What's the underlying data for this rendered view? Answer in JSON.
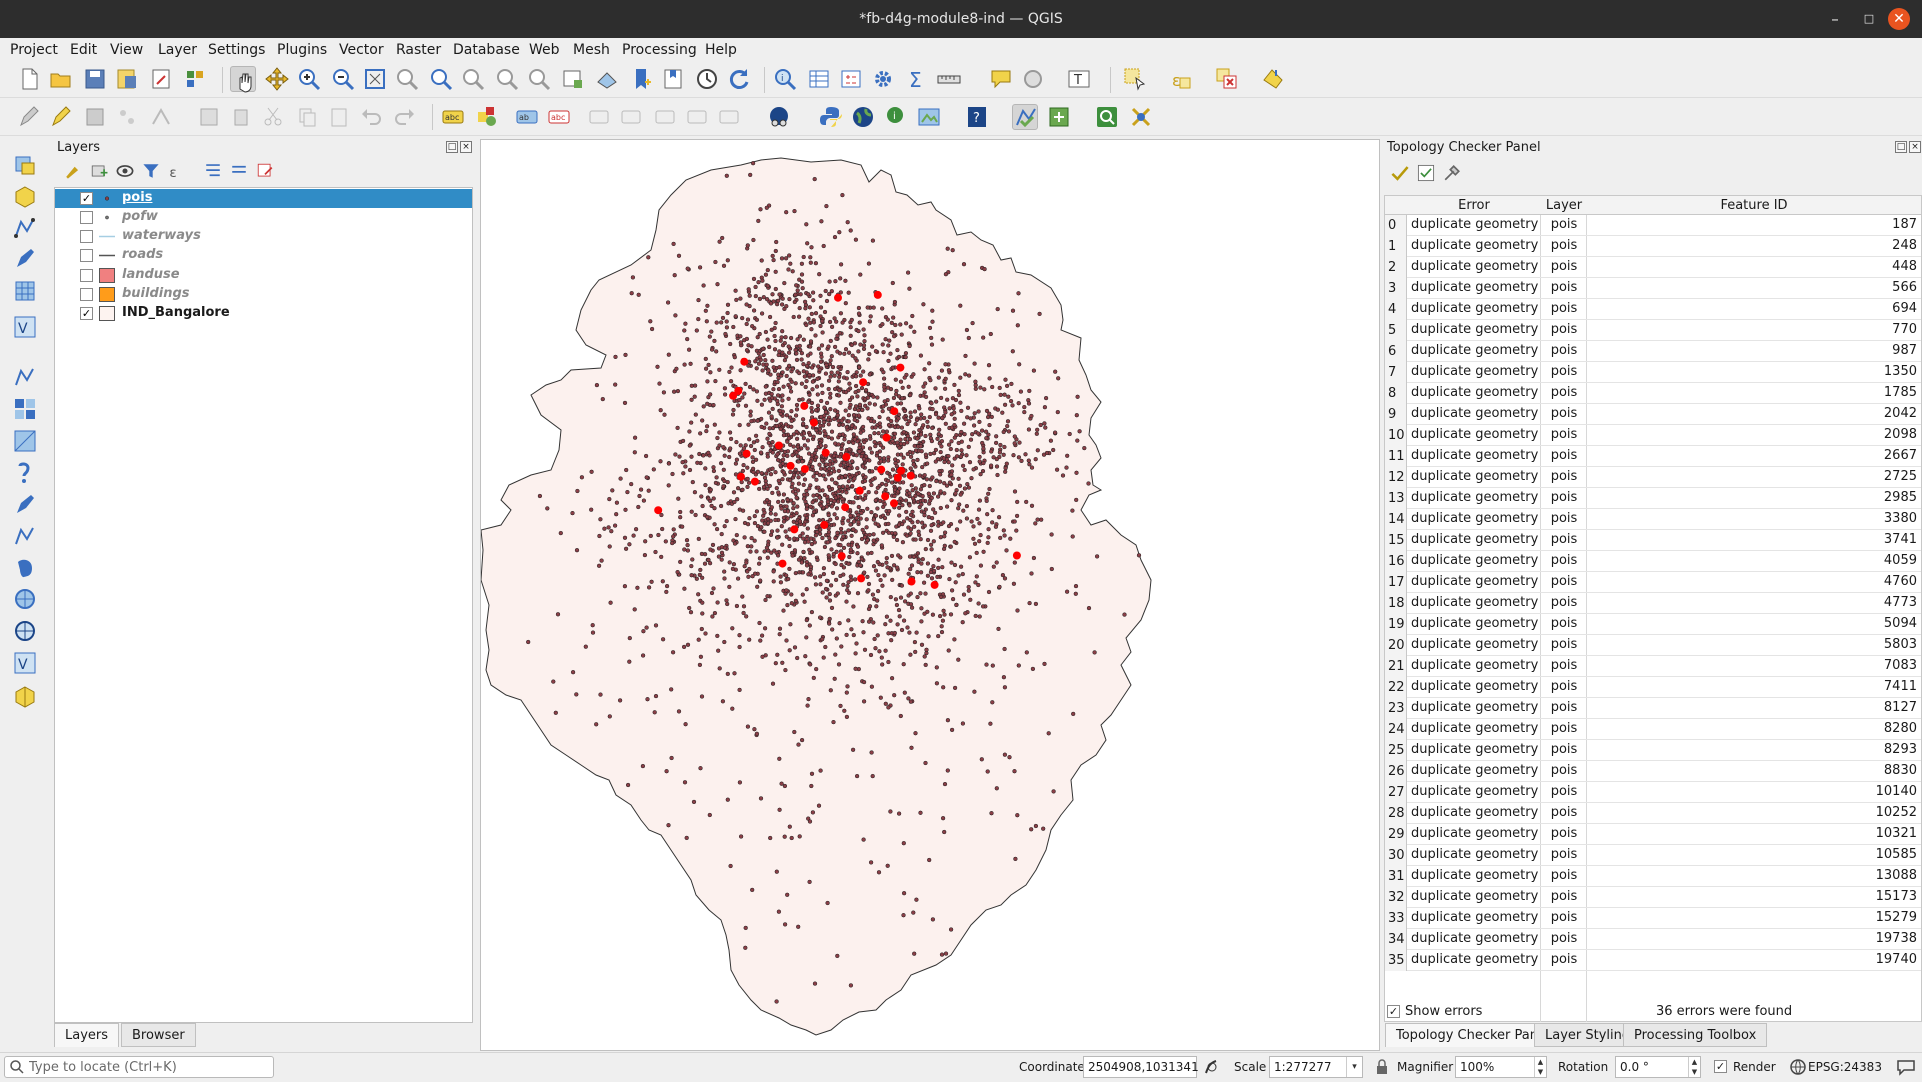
{
  "window": {
    "title": "*fb-d4g-module8-ind — QGIS"
  },
  "menu": [
    "Project",
    "Edit",
    "View",
    "Layer",
    "Settings",
    "Plugins",
    "Vector",
    "Raster",
    "Database",
    "Web",
    "Mesh",
    "Processing",
    "Help"
  ],
  "layers_panel": {
    "title": "Layers",
    "layers": [
      {
        "name": "pois",
        "checked": true,
        "selected": true,
        "symbol": "point-icon"
      },
      {
        "name": "pofw",
        "checked": false,
        "selected": false,
        "symbol": "point-icon"
      },
      {
        "name": "waterways",
        "checked": false,
        "selected": false,
        "symbol": "line-icon",
        "color": "#a6cee3"
      },
      {
        "name": "roads",
        "checked": false,
        "selected": false,
        "symbol": "line-icon",
        "color": "#555555"
      },
      {
        "name": "landuse",
        "checked": false,
        "selected": false,
        "symbol": "polygon-icon",
        "color": "#f08080"
      },
      {
        "name": "buildings",
        "checked": false,
        "selected": false,
        "symbol": "polygon-icon",
        "color": "#ff9c1a"
      },
      {
        "name": "IND_Bangalore",
        "checked": true,
        "selected": false,
        "symbol": "polygon-icon",
        "color": "#fdf3f0"
      }
    ],
    "tabs": [
      "Layers",
      "Browser"
    ],
    "active_tab": "Layers"
  },
  "map": {
    "polygon_fill": "#fcf1ee",
    "point_color": "#8a3f47",
    "error_color": "#ff0000"
  },
  "topology": {
    "title": "Topology Checker Panel",
    "columns": [
      "Error",
      "Layer",
      "Feature ID"
    ],
    "rows": [
      {
        "idx": "0",
        "error": "duplicate geometry",
        "layer": "pois",
        "fid": "187"
      },
      {
        "idx": "1",
        "error": "duplicate geometry",
        "layer": "pois",
        "fid": "248"
      },
      {
        "idx": "2",
        "error": "duplicate geometry",
        "layer": "pois",
        "fid": "448"
      },
      {
        "idx": "3",
        "error": "duplicate geometry",
        "layer": "pois",
        "fid": "566"
      },
      {
        "idx": "4",
        "error": "duplicate geometry",
        "layer": "pois",
        "fid": "694"
      },
      {
        "idx": "5",
        "error": "duplicate geometry",
        "layer": "pois",
        "fid": "770"
      },
      {
        "idx": "6",
        "error": "duplicate geometry",
        "layer": "pois",
        "fid": "987"
      },
      {
        "idx": "7",
        "error": "duplicate geometry",
        "layer": "pois",
        "fid": "1350"
      },
      {
        "idx": "8",
        "error": "duplicate geometry",
        "layer": "pois",
        "fid": "1785"
      },
      {
        "idx": "9",
        "error": "duplicate geometry",
        "layer": "pois",
        "fid": "2042"
      },
      {
        "idx": "10",
        "error": "duplicate geometry",
        "layer": "pois",
        "fid": "2098"
      },
      {
        "idx": "11",
        "error": "duplicate geometry",
        "layer": "pois",
        "fid": "2667"
      },
      {
        "idx": "12",
        "error": "duplicate geometry",
        "layer": "pois",
        "fid": "2725"
      },
      {
        "idx": "13",
        "error": "duplicate geometry",
        "layer": "pois",
        "fid": "2985"
      },
      {
        "idx": "14",
        "error": "duplicate geometry",
        "layer": "pois",
        "fid": "3380"
      },
      {
        "idx": "15",
        "error": "duplicate geometry",
        "layer": "pois",
        "fid": "3741"
      },
      {
        "idx": "16",
        "error": "duplicate geometry",
        "layer": "pois",
        "fid": "4059"
      },
      {
        "idx": "17",
        "error": "duplicate geometry",
        "layer": "pois",
        "fid": "4760"
      },
      {
        "idx": "18",
        "error": "duplicate geometry",
        "layer": "pois",
        "fid": "4773"
      },
      {
        "idx": "19",
        "error": "duplicate geometry",
        "layer": "pois",
        "fid": "5094"
      },
      {
        "idx": "20",
        "error": "duplicate geometry",
        "layer": "pois",
        "fid": "5803"
      },
      {
        "idx": "21",
        "error": "duplicate geometry",
        "layer": "pois",
        "fid": "7083"
      },
      {
        "idx": "22",
        "error": "duplicate geometry",
        "layer": "pois",
        "fid": "7411"
      },
      {
        "idx": "23",
        "error": "duplicate geometry",
        "layer": "pois",
        "fid": "8127"
      },
      {
        "idx": "24",
        "error": "duplicate geometry",
        "layer": "pois",
        "fid": "8280"
      },
      {
        "idx": "25",
        "error": "duplicate geometry",
        "layer": "pois",
        "fid": "8293"
      },
      {
        "idx": "26",
        "error": "duplicate geometry",
        "layer": "pois",
        "fid": "8830"
      },
      {
        "idx": "27",
        "error": "duplicate geometry",
        "layer": "pois",
        "fid": "10140"
      },
      {
        "idx": "28",
        "error": "duplicate geometry",
        "layer": "pois",
        "fid": "10252"
      },
      {
        "idx": "29",
        "error": "duplicate geometry",
        "layer": "pois",
        "fid": "10321"
      },
      {
        "idx": "30",
        "error": "duplicate geometry",
        "layer": "pois",
        "fid": "10585"
      },
      {
        "idx": "31",
        "error": "duplicate geometry",
        "layer": "pois",
        "fid": "13088"
      },
      {
        "idx": "32",
        "error": "duplicate geometry",
        "layer": "pois",
        "fid": "15173"
      },
      {
        "idx": "33",
        "error": "duplicate geometry",
        "layer": "pois",
        "fid": "15279"
      },
      {
        "idx": "34",
        "error": "duplicate geometry",
        "layer": "pois",
        "fid": "19738"
      },
      {
        "idx": "35",
        "error": "duplicate geometry",
        "layer": "pois",
        "fid": "19740"
      }
    ],
    "show_errors_label": "Show errors",
    "show_errors_checked": true,
    "error_count": "36 errors were found",
    "tabs": [
      "Topology Checker Panel",
      "Layer Styling",
      "Processing Toolbox"
    ],
    "active_tab": "Topology Checker Panel"
  },
  "statusbar": {
    "locate_placeholder": "Type to locate (Ctrl+K)",
    "coordinate_label": "Coordinate",
    "coordinate": "2504908,1031341",
    "scale_label": "Scale",
    "scale": "1:277277",
    "magnifier_label": "Magnifier",
    "magnifier": "100%",
    "rotation_label": "Rotation",
    "rotation": "0.0 °",
    "render_label": "Render",
    "render_checked": true,
    "crs": "EPSG:24383"
  }
}
